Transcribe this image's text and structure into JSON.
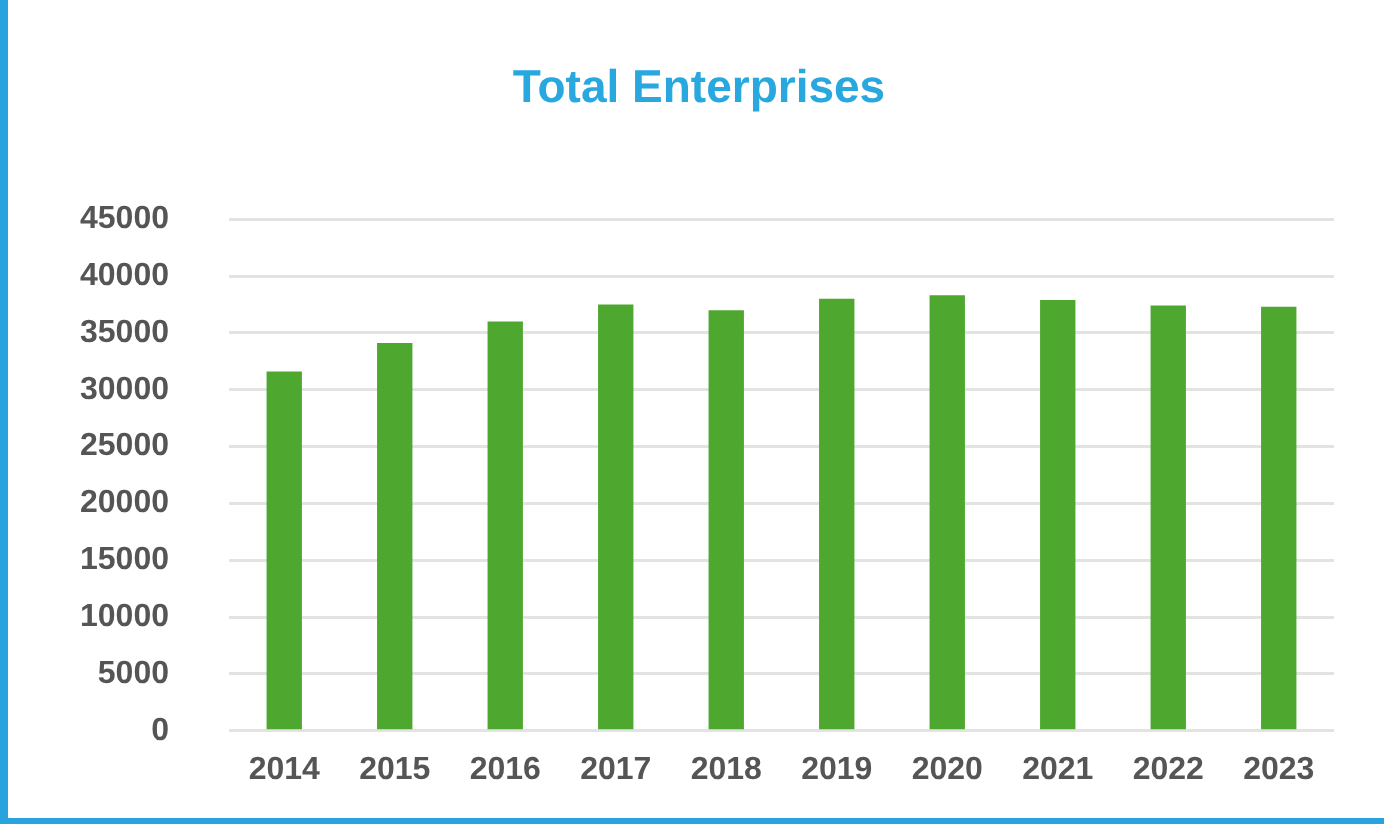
{
  "chart_data": {
    "type": "bar",
    "title": "Total Enterprises",
    "categories": [
      "2014",
      "2015",
      "2016",
      "2017",
      "2018",
      "2019",
      "2020",
      "2021",
      "2022",
      "2023"
    ],
    "values": [
      31600,
      34100,
      36000,
      37500,
      37000,
      38000,
      38300,
      37900,
      37400,
      37300
    ],
    "color": "#4ea72e",
    "ylim": [
      0,
      45000
    ],
    "yticks": [
      0,
      5000,
      10000,
      15000,
      20000,
      25000,
      30000,
      35000,
      40000,
      45000
    ],
    "grid": "y",
    "legend": false
  }
}
